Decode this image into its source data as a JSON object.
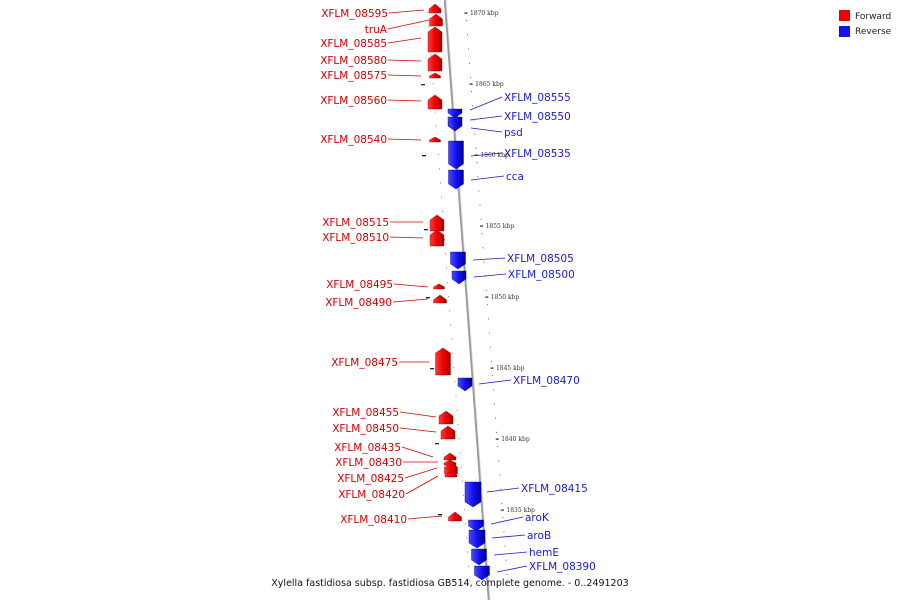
{
  "legend": {
    "forward_label": "Forward",
    "reverse_label": "Reverse",
    "forward_color": "#ee0000",
    "reverse_color": "#1212ee"
  },
  "caption": "Xylella fastidiosa subsp. fastidiosa GB514, complete genome. - 0..2491203",
  "scale_labels": [
    "1870 kbp",
    "1865 kbp",
    "1860 kbp",
    "1855 kbp",
    "1850 kbp",
    "1845 kbp",
    "1840 kbp",
    "1835 kbp"
  ],
  "forward_genes": [
    "XFLM_08595",
    "truA",
    "XFLM_08585",
    "XFLM_08580",
    "XFLM_08575",
    "XFLM_08560",
    "XFLM_08540",
    "XFLM_08515",
    "XFLM_08510",
    "XFLM_08495",
    "XFLM_08490",
    "XFLM_08475",
    "XFLM_08455",
    "XFLM_08450",
    "XFLM_08435",
    "XFLM_08430",
    "XFLM_08425",
    "XFLM_08420",
    "XFLM_08410"
  ],
  "reverse_genes": [
    "XFLM_08555",
    "XFLM_08550",
    "psd",
    "XFLM_08535",
    "cca",
    "XFLM_08505",
    "XFLM_08500",
    "XFLM_08470",
    "XFLM_08415",
    "aroK",
    "aroB",
    "hemE",
    "XFLM_08390"
  ]
}
